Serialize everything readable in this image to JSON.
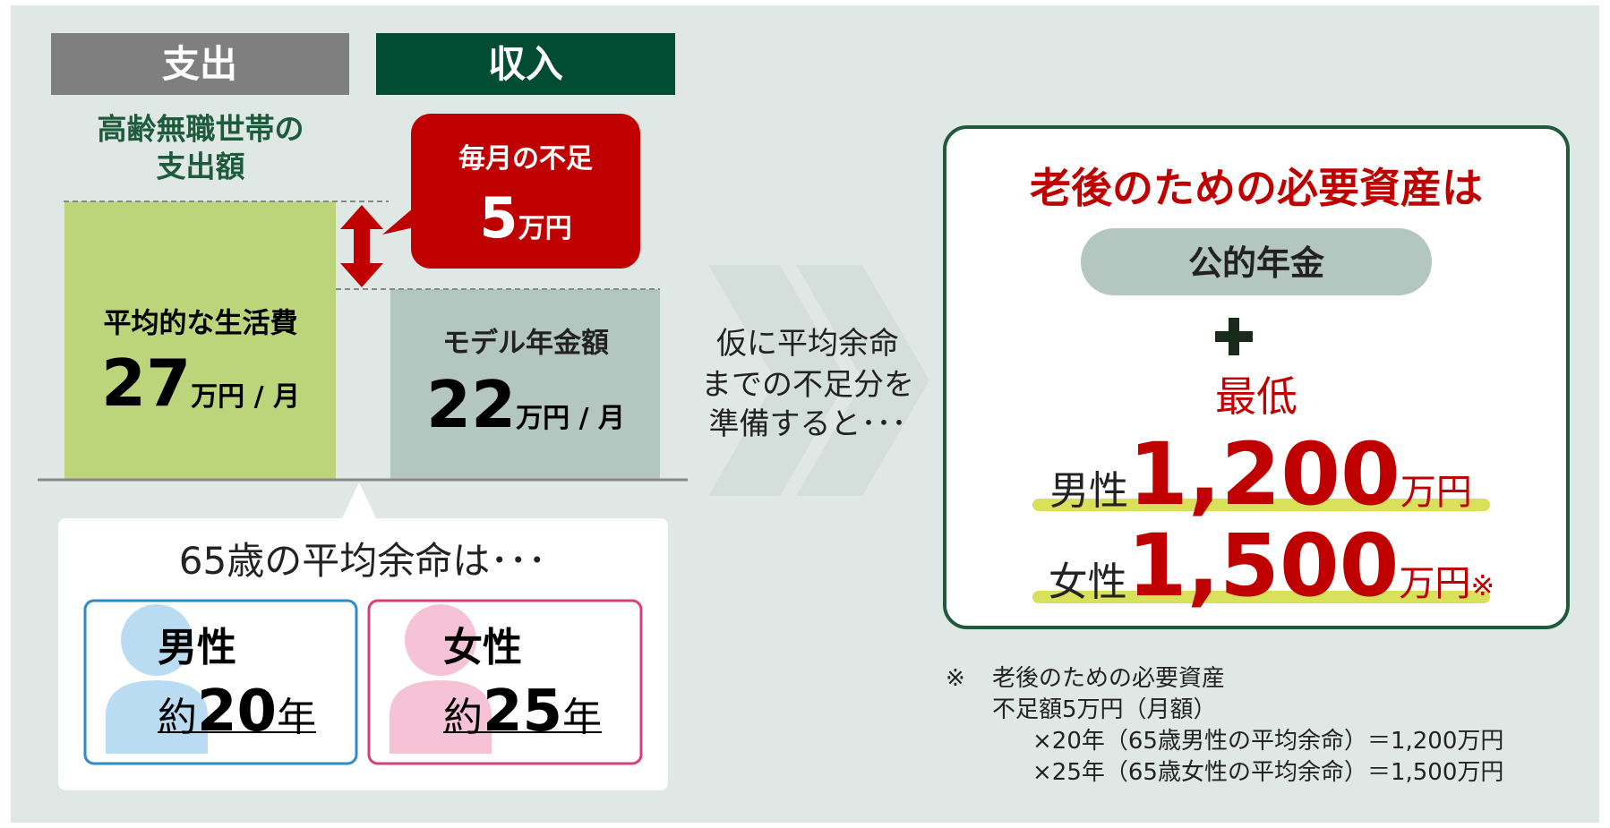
{
  "headers": {
    "expense": "支出",
    "income": "収入"
  },
  "expense_label": [
    "高齢無職世帯の",
    "支出額"
  ],
  "shortfall": {
    "title": "毎月の不足",
    "amount": "5",
    "unit": "万円"
  },
  "living_cost": {
    "label": "平均的な生活費",
    "amount": "27",
    "unit": "万円 / 月"
  },
  "pension": {
    "label": "モデル年金額",
    "amount": "22",
    "unit": "万円 / 月"
  },
  "middle_text": [
    "仮に平均余命",
    "までの不足分を",
    "準備すると･･･"
  ],
  "life_expectancy": {
    "title": "65歳の平均余命は･･･",
    "male": {
      "gender": "男性",
      "prefix": "約",
      "years": "20",
      "unit": "年"
    },
    "female": {
      "gender": "女性",
      "prefix": "約",
      "years": "25",
      "unit": "年"
    }
  },
  "result": {
    "title": "老後のための必要資産は",
    "pension": "公的年金",
    "minimum": "最低",
    "male": {
      "gender": "男性",
      "amount": "1,200",
      "unit": "万円"
    },
    "female": {
      "gender": "女性",
      "amount": "1,500",
      "unit": "万円",
      "mark": "※"
    }
  },
  "footnote": {
    "mark": "※",
    "lines": [
      "老後のための必要資産",
      "不足額5万円（月額）",
      "×20年（65歳男性の平均余命）＝1,200万円",
      "×25年（65歳女性の平均余命）＝1,500万円"
    ]
  }
}
